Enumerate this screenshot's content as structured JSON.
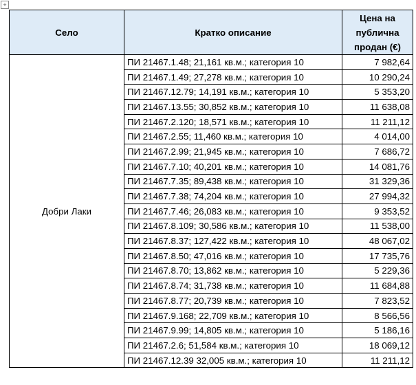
{
  "table": {
    "header": [
      "Село",
      "Кратко описание",
      "Цена на публична продан (€)"
    ],
    "village": "Добри Лаки",
    "rows": [
      [
        "ПИ 21467.1.48; 21,161 кв.м.; категория 10",
        "7 982,64"
      ],
      [
        "ПИ 21467.1.49; 27,278 кв.м.; категория 10",
        "10 290,24"
      ],
      [
        "ПИ 21467.12.79; 14,191 кв.м.; категория 10",
        "5 353,20"
      ],
      [
        "ПИ 21467.13.55; 30,852 кв.м.; категория 10",
        "11 638,08"
      ],
      [
        "ПИ 21467.2.120; 18,571 кв.м.; категория 10",
        "11 211,12"
      ],
      [
        "ПИ 21467.2.55; 11,460 кв.м.; категория 10",
        "4 014,00"
      ],
      [
        "ПИ 21467.2.99; 21,945 кв.м.; категория 10",
        "7 686,72"
      ],
      [
        "ПИ 21467.7.10; 40,201 кв.м.; категория 10",
        "14 081,76"
      ],
      [
        "ПИ 21467.7.35; 89,438 кв.м.; категория 10",
        "31 329,36"
      ],
      [
        "ПИ 21467.7.38; 74,204 кв.м.; категория 10",
        "27 994,32"
      ],
      [
        "ПИ 21467.7.46; 26,083 кв.м.; категория 10",
        "9 353,52"
      ],
      [
        "ПИ 21467.8.109; 30,586 кв.м.; категория 10",
        "11 538,00"
      ],
      [
        "ПИ 21467.8.37; 127,422 кв.м.; категория 10",
        "48 067,02"
      ],
      [
        "ПИ 21467.8.50; 47,016 кв.м.; категория 10",
        "17 735,76"
      ],
      [
        "ПИ 21467.8.70; 13,862 кв.м.; категория 10",
        "5 229,36"
      ],
      [
        "ПИ 21467.8.74; 31,738 кв.м.; категория 10",
        "11 684,88"
      ],
      [
        "ПИ 21467.8.77; 20,739 кв.м.; категория 10",
        "7 823,52"
      ],
      [
        "ПИ 21467.9.168; 22,709 кв.м.; категория 10",
        "8 566,56"
      ],
      [
        "ПИ 21467.9.99; 14,805 кв.м.; категория 10",
        "5 186,16"
      ],
      [
        "ПИ 21467.2.6; 51,584 кв.м.; категория 10",
        "18 069,12"
      ],
      [
        "ПИ 21467.12.39 32,005 кв.м.; категория 10",
        "11 211,12"
      ]
    ]
  }
}
